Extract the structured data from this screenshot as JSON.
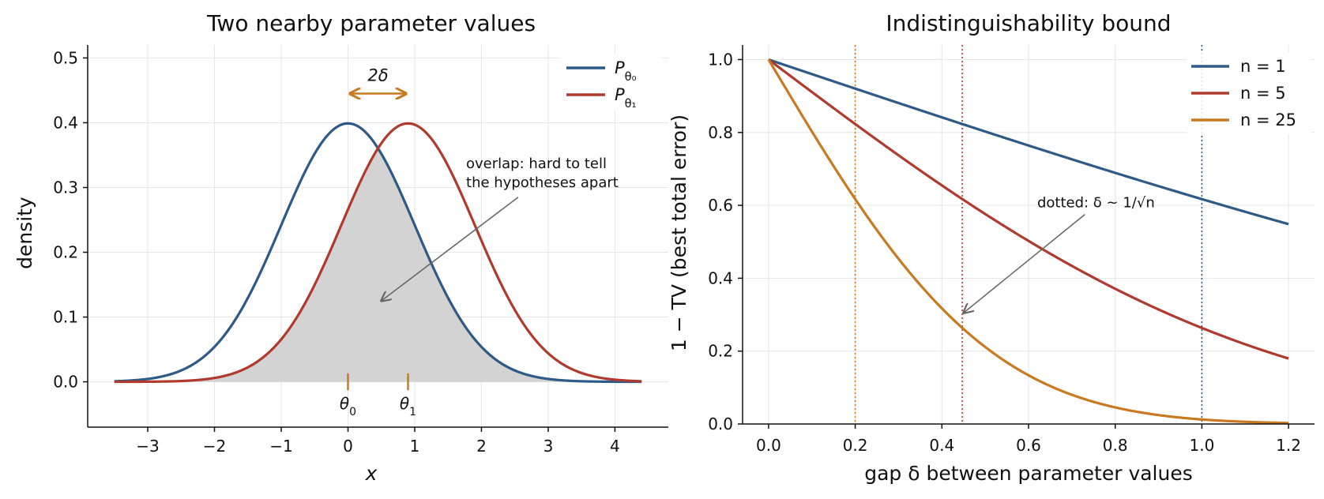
{
  "chart_data": [
    {
      "type": "line",
      "title": "Two nearby parameter values",
      "xlabel": "x",
      "ylabel": "density",
      "xlim": [
        -3.9,
        4.8
      ],
      "ylim": [
        -0.07,
        0.52
      ],
      "xticks": [
        -3,
        -2,
        -1,
        0,
        1,
        2,
        3,
        4
      ],
      "xtick_labels": [
        "−3",
        "−2",
        "−1",
        "0",
        "1",
        "2",
        "3",
        "4"
      ],
      "yticks": [
        0.0,
        0.1,
        0.2,
        0.3,
        0.4,
        0.5
      ],
      "ytick_labels": [
        "0.0",
        "0.1",
        "0.2",
        "0.3",
        "0.4",
        "0.5"
      ],
      "grid": true,
      "legend_position": "top-right",
      "series": [
        {
          "name": "Pθ₀",
          "name_main": "P",
          "name_sub": "θ₀",
          "color": "#2d5a87",
          "mean": 0.0,
          "sd": 1.0,
          "x_range": [
            -3.5,
            4.4
          ]
        },
        {
          "name": "Pθ₁",
          "name_main": "P",
          "name_sub": "θ₁",
          "color": "#b03a2e",
          "mean": 0.9,
          "sd": 1.0,
          "x_range": [
            -3.5,
            4.4
          ]
        }
      ],
      "overlap_fill": {
        "description": "shaded min of both densities",
        "color": "#d3d3d3"
      },
      "markers": [
        {
          "x": 0.0,
          "label": "θ0",
          "label_main": "θ",
          "label_sub": "0",
          "color": "#c97a20"
        },
        {
          "x": 0.9,
          "label": "θ1",
          "label_main": "θ",
          "label_sub": "1",
          "color": "#c97a20"
        }
      ],
      "gap_arrow": {
        "x_from": 0.05,
        "x_to": 0.85,
        "y": 0.445,
        "label": "2δ",
        "color": "#c97a20"
      },
      "annotation": {
        "text_lines": [
          "overlap: hard to tell",
          "the hypotheses apart"
        ],
        "text_x": 1.77,
        "text_y": 0.33,
        "arrow_from": [
          2.55,
          0.285
        ],
        "arrow_to": [
          0.5,
          0.125
        ]
      }
    },
    {
      "type": "line",
      "title": "Indistinguishability bound",
      "xlabel": "gap δ between parameter values",
      "ylabel": "1 − TV (best total error)",
      "xlim": [
        -0.06,
        1.26
      ],
      "ylim": [
        0.0,
        1.04
      ],
      "xticks": [
        0.0,
        0.2,
        0.4,
        0.6,
        0.8,
        1.0,
        1.2
      ],
      "xtick_labels": [
        "0.0",
        "0.2",
        "0.4",
        "0.6",
        "0.8",
        "1.0",
        "1.2"
      ],
      "yticks": [
        0.0,
        0.2,
        0.4,
        0.6,
        0.8,
        1.0
      ],
      "ytick_labels": [
        "0.0",
        "0.2",
        "0.4",
        "0.6",
        "0.8",
        "1.0"
      ],
      "grid": true,
      "legend_position": "top-right",
      "series": [
        {
          "name": "n = 1",
          "n": 1,
          "color": "#2d5a87"
        },
        {
          "name": "n = 5",
          "n": 5,
          "color": "#b03a2e"
        },
        {
          "name": "n = 25",
          "n": 25,
          "color": "#c97a20"
        }
      ],
      "x_range": [
        0.0,
        1.2
      ],
      "vlines": [
        {
          "x": 1.0,
          "color": "#2d5a87"
        },
        {
          "x": 0.447,
          "color": "#b03a2e"
        },
        {
          "x": 0.2,
          "color": "#c97a20"
        }
      ],
      "annotation": {
        "text": "dotted: δ ~ 1/√n",
        "text_x": 0.62,
        "text_y": 0.595,
        "arrow_from": [
          0.73,
          0.575
        ],
        "arrow_to": [
          0.45,
          0.305
        ]
      }
    }
  ]
}
